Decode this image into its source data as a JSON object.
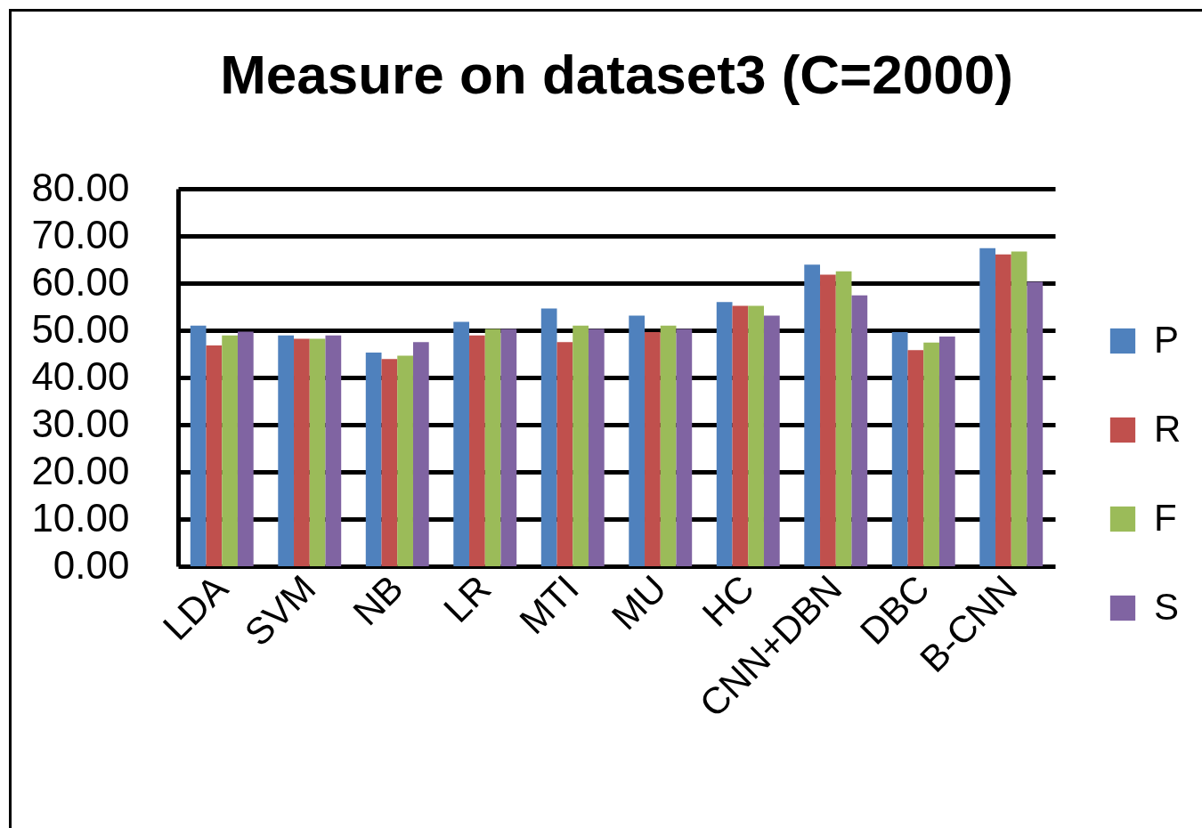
{
  "chart_data": {
    "type": "bar",
    "title": "Measure on dataset3 (C=2000)",
    "categories": [
      "LDA",
      "SVM",
      "NB",
      "LR",
      "MTI",
      "MU",
      "HC",
      "CNN+DBN",
      "DBC",
      "B-CNN"
    ],
    "series": [
      {
        "name": "P",
        "color": "#4f81bd",
        "values": [
          51.0,
          48.9,
          45.3,
          51.8,
          54.6,
          53.1,
          56.0,
          63.9,
          49.6,
          67.4
        ]
      },
      {
        "name": "R",
        "color": "#c0504d",
        "values": [
          46.8,
          48.2,
          43.9,
          48.9,
          47.5,
          49.6,
          55.2,
          61.8,
          45.8,
          66.1
        ]
      },
      {
        "name": "F",
        "color": "#9bbb59",
        "values": [
          48.9,
          48.2,
          44.6,
          50.3,
          51.0,
          51.0,
          55.2,
          62.5,
          47.4,
          66.7
        ]
      },
      {
        "name": "S",
        "color": "#8064a2",
        "values": [
          49.7,
          48.9,
          47.5,
          50.3,
          50.3,
          50.3,
          53.1,
          57.4,
          48.7,
          60.3
        ]
      }
    ],
    "ylim": [
      0,
      80
    ],
    "yticks": [
      {
        "value": 0,
        "label": "0.00"
      },
      {
        "value": 10,
        "label": "10.00"
      },
      {
        "value": 20,
        "label": "20.00"
      },
      {
        "value": 30,
        "label": "30.00"
      },
      {
        "value": 40,
        "label": "40.00"
      },
      {
        "value": 50,
        "label": "50.00"
      },
      {
        "value": 60,
        "label": "60.00"
      },
      {
        "value": 70,
        "label": "70.00"
      },
      {
        "value": 80,
        "label": "80.00"
      }
    ],
    "grid": true,
    "legend": "right"
  }
}
